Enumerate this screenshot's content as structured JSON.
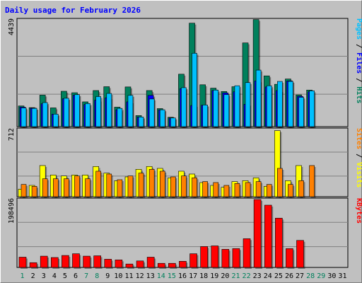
{
  "chart_data": {
    "title": "Daily usage for February 2026",
    "type": "bar",
    "colors": {
      "hits": "#00805c",
      "files": "#0000ff",
      "pages": "#00c0ff",
      "visits": "#ffff00",
      "sites": "#ff8000",
      "kbytes": "#ff0000",
      "weekend_day": "#00805c",
      "weekday": "#000000",
      "background": "#c0c0c0"
    },
    "x_labels": [
      "1",
      "2",
      "3",
      "4",
      "5",
      "6",
      "7",
      "8",
      "9",
      "10",
      "11",
      "12",
      "13",
      "14",
      "15",
      "16",
      "17",
      "18",
      "19",
      "20",
      "21",
      "22",
      "23",
      "24",
      "25",
      "26",
      "27",
      "28",
      "29",
      "30",
      "31"
    ],
    "weekend_days": [
      "1",
      "7",
      "8",
      "14",
      "15",
      "21",
      "22",
      "28",
      "29"
    ],
    "panels": [
      {
        "name": "hits-files-pages",
        "ymax_label": "4439",
        "ymax": 4439,
        "legend": [
          "Pages",
          " / ",
          "Files",
          " / ",
          "Hits"
        ],
        "legend_colors": [
          "#00c0ff",
          "#000000",
          "#0000ff",
          "#000000",
          "#00805c"
        ],
        "series": [
          {
            "key": "hits",
            "values": [
              860,
              790,
              1310,
              780,
              1470,
              1410,
              1030,
              1500,
              1660,
              810,
              1650,
              460,
              1500,
              750,
              390,
              2180,
              4300,
              1740,
              1600,
              1460,
              1660,
              3480,
              4450,
              2110,
              1760,
              1980,
              1320,
              1520,
              0,
              0,
              0
            ]
          },
          {
            "key": "files",
            "values": [
              810,
              770,
              950,
              520,
              1160,
              1310,
              920,
              1100,
              1200,
              700,
              1030,
              400,
              1300,
              700,
              360,
              1580,
              880,
              890,
              1500,
              1400,
              1450,
              930,
              1900,
              1650,
              1500,
              1900,
              1260,
              1450,
              0,
              0,
              0
            ]
          },
          {
            "key": "pages",
            "values": [
              780,
              760,
              1000,
              520,
              1180,
              1330,
              960,
              1250,
              1380,
              760,
              1300,
              400,
              1150,
              700,
              360,
              1620,
              3050,
              900,
              1520,
              1330,
              1700,
              1830,
              2350,
              1700,
              1880,
              1880,
              1220,
              1490,
              0,
              0,
              0
            ]
          }
        ]
      },
      {
        "name": "visits-sites",
        "ymax_label": "712",
        "ymax": 712,
        "legend": [
          "Sites",
          " / ",
          "Visits"
        ],
        "legend_colors": [
          "#ff8000",
          "#000000",
          "#ffff00"
        ],
        "series": [
          {
            "key": "visits",
            "values": [
              80,
              120,
              330,
              230,
              220,
              230,
              230,
              320,
              250,
              170,
              210,
              290,
              320,
              300,
              200,
              270,
              240,
              150,
              120,
              100,
              160,
              170,
              200,
              110,
              700,
              170,
              330,
              0,
              0,
              0,
              0
            ]
          },
          {
            "key": "sites",
            "values": [
              130,
              110,
              190,
              190,
              190,
              220,
              190,
              270,
              240,
              180,
              220,
              250,
              290,
              270,
              210,
              220,
              200,
              160,
              150,
              120,
              140,
              150,
              160,
              130,
              300,
              130,
              170,
              330,
              0,
              0,
              0
            ]
          }
        ]
      },
      {
        "name": "kbytes",
        "ymax_label": "198496",
        "ymax": 198496,
        "legend": [
          "KBytes"
        ],
        "legend_colors": [
          "#ff0000"
        ],
        "series": [
          {
            "key": "kbytes",
            "values": [
              30000,
              14000,
              33000,
              29000,
              35000,
              40000,
              33000,
              34000,
              24000,
              22000,
              10000,
              19000,
              30000,
              12000,
              12000,
              18000,
              40000,
              61000,
              63000,
              53000,
              55000,
              84000,
              198500,
              182000,
              144000,
              55000,
              79000,
              0,
              0,
              0,
              0
            ]
          }
        ]
      }
    ]
  }
}
